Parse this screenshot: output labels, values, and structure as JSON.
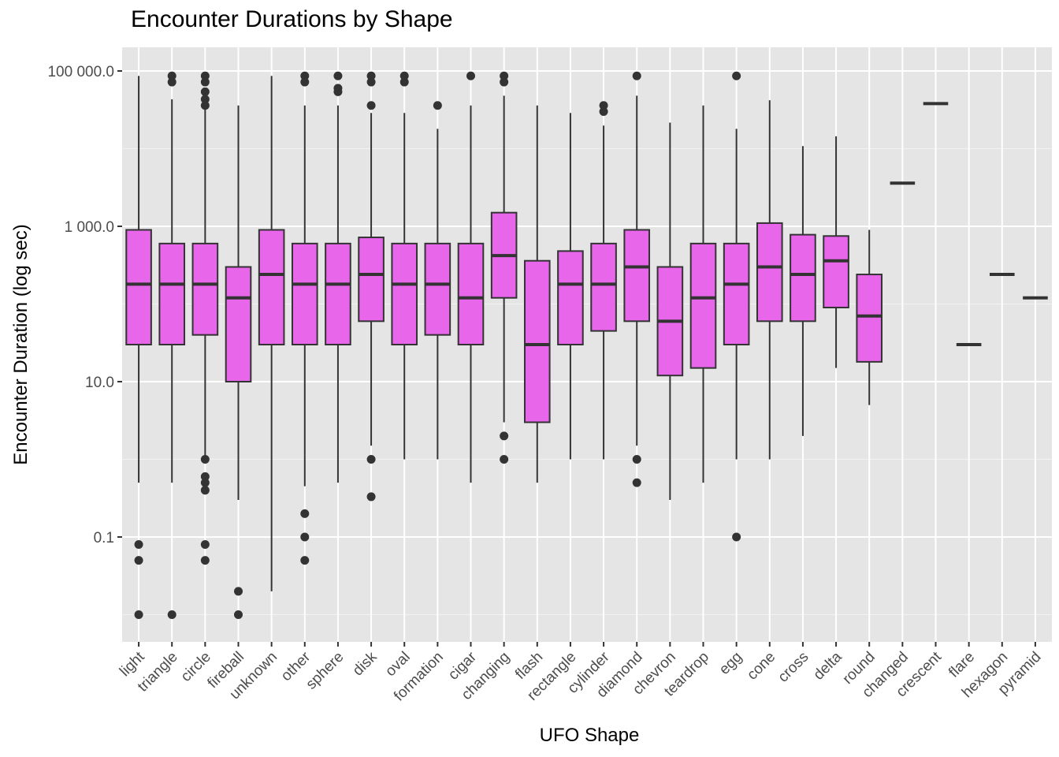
{
  "chart_data": {
    "type": "box",
    "title": "Encounter Durations by Shape",
    "xlabel": "UFO Shape",
    "ylabel": "Encounter Duration (log sec)",
    "y_scale": "log10",
    "ylim": [
      0.009,
      150000
    ],
    "y_ticks": [
      0.1,
      10,
      1000,
      100000
    ],
    "y_tick_labels": [
      "0.1",
      "10.0",
      "1 000.0",
      "100 000.0"
    ],
    "fill_color": "#E766EA",
    "panel_background": "#E5E5E5",
    "categories": [
      "light",
      "triangle",
      "circle",
      "fireball",
      "unknown",
      "other",
      "sphere",
      "disk",
      "oval",
      "formation",
      "cigar",
      "changing",
      "flash",
      "rectangle",
      "cylinder",
      "diamond",
      "chevron",
      "teardrop",
      "egg",
      "cone",
      "cross",
      "delta",
      "round",
      "changed",
      "crescent",
      "flare",
      "hexagon",
      "pyramid"
    ],
    "boxes": [
      {
        "min": 0.5,
        "q1": 30,
        "median": 180,
        "q3": 900,
        "max": 86400,
        "outliers": [
          0.08,
          0.05,
          0.01
        ]
      },
      {
        "min": 0.5,
        "q1": 30,
        "median": 180,
        "q3": 600,
        "max": 43200,
        "outliers": [
          86400,
          72000,
          0.01
        ]
      },
      {
        "min": 1,
        "q1": 40,
        "median": 180,
        "q3": 600,
        "max": 36000,
        "outliers": [
          86400,
          72000,
          54000,
          43200,
          36000,
          1,
          0.6,
          0.5,
          0.4,
          0.08,
          0.05
        ]
      },
      {
        "min": 0.3,
        "q1": 10,
        "median": 120,
        "q3": 300,
        "max": 36000,
        "outliers": [
          0.02,
          0.01
        ]
      },
      {
        "min": 0.02,
        "q1": 30,
        "median": 240,
        "q3": 900,
        "max": 86400,
        "outliers": []
      },
      {
        "min": 0.45,
        "q1": 30,
        "median": 180,
        "q3": 600,
        "max": 36000,
        "outliers": [
          86400,
          72000,
          0.2,
          0.1,
          0.05
        ]
      },
      {
        "min": 0.5,
        "q1": 30,
        "median": 180,
        "q3": 600,
        "max": 36000,
        "outliers": [
          86400,
          60000,
          54000
        ]
      },
      {
        "min": 1.5,
        "q1": 60,
        "median": 240,
        "q3": 720,
        "max": 28800,
        "outliers": [
          86400,
          72000,
          36000,
          1,
          0.33
        ]
      },
      {
        "min": 1,
        "q1": 30,
        "median": 180,
        "q3": 600,
        "max": 28800,
        "outliers": [
          86400,
          72000
        ]
      },
      {
        "min": 1,
        "q1": 40,
        "median": 180,
        "q3": 600,
        "max": 18000,
        "outliers": [
          36000
        ]
      },
      {
        "min": 0.5,
        "q1": 30,
        "median": 120,
        "q3": 600,
        "max": 36000,
        "outliers": [
          86400
        ]
      },
      {
        "min": 3,
        "q1": 120,
        "median": 420,
        "q3": 1500,
        "max": 48000,
        "outliers": [
          86400,
          72000,
          2,
          1
        ]
      },
      {
        "min": 0.5,
        "q1": 3,
        "median": 30,
        "q3": 360,
        "max": 36000,
        "outliers": []
      },
      {
        "min": 1,
        "q1": 30,
        "median": 180,
        "q3": 480,
        "max": 28800,
        "outliers": []
      },
      {
        "min": 1,
        "q1": 45,
        "median": 180,
        "q3": 600,
        "max": 19800,
        "outliers": [
          36000,
          30000
        ]
      },
      {
        "min": 1.5,
        "q1": 60,
        "median": 300,
        "q3": 900,
        "max": 48000,
        "outliers": [
          86400,
          1,
          0.5
        ]
      },
      {
        "min": 0.3,
        "q1": 12,
        "median": 60,
        "q3": 300,
        "max": 21600,
        "outliers": []
      },
      {
        "min": 0.5,
        "q1": 15,
        "median": 120,
        "q3": 600,
        "max": 36000,
        "outliers": []
      },
      {
        "min": 1,
        "q1": 30,
        "median": 180,
        "q3": 600,
        "max": 18000,
        "outliers": [
          86400,
          0.1
        ]
      },
      {
        "min": 1,
        "q1": 60,
        "median": 300,
        "q3": 1100,
        "max": 42000,
        "outliers": []
      },
      {
        "min": 2,
        "q1": 60,
        "median": 240,
        "q3": 780,
        "max": 10800,
        "outliers": []
      },
      {
        "min": 15,
        "q1": 90,
        "median": 360,
        "q3": 750,
        "max": 14400,
        "outliers": []
      },
      {
        "min": 5,
        "q1": 18,
        "median": 70,
        "q3": 240,
        "max": 900,
        "outliers": []
      },
      {
        "min": 3600,
        "q1": 3600,
        "median": 3600,
        "q3": 3600,
        "max": 3600,
        "outliers": []
      },
      {
        "min": 38000,
        "q1": 38000,
        "median": 38000,
        "q3": 38000,
        "max": 38000,
        "outliers": []
      },
      {
        "min": 30,
        "q1": 30,
        "median": 30,
        "q3": 30,
        "max": 30,
        "outliers": []
      },
      {
        "min": 240,
        "q1": 240,
        "median": 240,
        "q3": 240,
        "max": 240,
        "outliers": []
      },
      {
        "min": 120,
        "q1": 120,
        "median": 120,
        "q3": 120,
        "max": 120,
        "outliers": []
      }
    ]
  }
}
